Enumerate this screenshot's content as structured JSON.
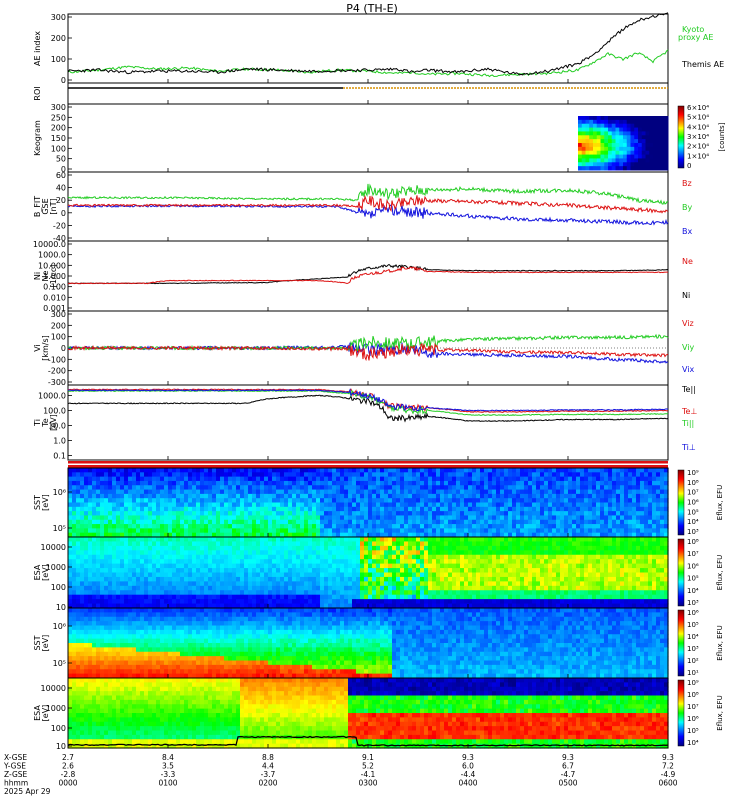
{
  "title": "P4 (TH-E)",
  "footer": {
    "rows": [
      "X-GSE",
      "Y-GSE",
      "Z-GSE",
      "hhmm",
      "2025 Apr 29"
    ],
    "columns": [
      [
        "2.7",
        "2.6",
        "-2.8",
        "0000"
      ],
      [
        "8.4",
        "3.5",
        "-3.3",
        "0100"
      ],
      [
        "8.8",
        "4.4",
        "-3.7",
        "0200"
      ],
      [
        "9.1",
        "5.2",
        "-4.1",
        "0300"
      ],
      [
        "9.3",
        "6.0",
        "-4.4",
        "0400"
      ],
      [
        "9.3",
        "6.7",
        "-4.7",
        "0500"
      ],
      [
        "9.3",
        "7.2",
        "-4.9",
        "0600"
      ]
    ]
  },
  "colors": {
    "green": "#22cc22",
    "black": "#000000",
    "red": "#dd1111",
    "blue": "#1111dd",
    "orange": "#d89000"
  },
  "chart_data": [
    {
      "id": "ae",
      "type": "line",
      "ylabel": "AE index",
      "ylim": [
        -20,
        300
      ],
      "yticks": [
        "300",
        "200",
        "100",
        "0"
      ],
      "legend": [
        "Kyoto",
        "proxy AE",
        "Themis AE"
      ],
      "series": [
        {
          "name": "Kyoto proxy AE",
          "x": [
            0,
            30,
            60,
            90,
            120,
            150,
            180,
            210,
            240,
            270,
            300,
            330,
            345,
            360,
            390,
            420,
            450,
            480,
            510,
            525,
            540,
            555,
            570,
            585,
            600
          ],
          "values": [
            30,
            40,
            55,
            45,
            50,
            35,
            45,
            40,
            30,
            40,
            35,
            25,
            30,
            20,
            25,
            15,
            20,
            25,
            40,
            75,
            115,
            90,
            120,
            80,
            130
          ]
        },
        {
          "name": "Themis AE",
          "x": [
            0,
            30,
            60,
            90,
            120,
            150,
            180,
            210,
            240,
            270,
            300,
            330,
            345,
            360,
            390,
            420,
            450,
            480,
            510,
            525,
            540,
            555,
            570,
            585,
            600
          ],
          "values": [
            35,
            40,
            30,
            35,
            35,
            30,
            45,
            40,
            35,
            38,
            40,
            45,
            30,
            40,
            30,
            45,
            20,
            35,
            70,
            110,
            170,
            230,
            270,
            290,
            300
          ]
        }
      ]
    },
    {
      "id": "roi",
      "type": "line",
      "ylabel": "ROI",
      "ylim": [
        0,
        1
      ],
      "segments": [
        [
          0,
          275,
          "black"
        ],
        [
          275,
          600,
          "orange"
        ]
      ]
    },
    {
      "id": "keogram",
      "type": "heatmap",
      "ylabel": "Keogram",
      "ylim": [
        0,
        300
      ],
      "yticks": [
        "300",
        "250",
        "200",
        "150",
        "100",
        "50",
        "0"
      ],
      "x_range": [
        510,
        600
      ],
      "colorbar": {
        "label": "[counts]",
        "ticks": [
          "6×10⁴",
          "5×10⁴",
          "4×10⁴",
          "3×10⁴",
          "2×10⁴",
          "1×10⁴",
          "0"
        ]
      }
    },
    {
      "id": "bfit",
      "type": "line",
      "ylabel": [
        "B_FIT",
        "GSE",
        "[nT]"
      ],
      "ylim": [
        -40,
        60
      ],
      "yticks": [
        "60",
        "40",
        "20",
        "0",
        "-20",
        "-40"
      ],
      "legend": [
        "Bz",
        "By",
        "Bx"
      ],
      "series": [
        {
          "name": "Bz",
          "x": [
            0,
            100,
            200,
            270,
            290,
            300,
            320,
            350,
            400,
            450,
            500,
            540,
            570,
            600
          ],
          "values": [
            12,
            12,
            12,
            12,
            10,
            20,
            10,
            20,
            18,
            15,
            12,
            8,
            5,
            2
          ]
        },
        {
          "name": "By",
          "x": [
            0,
            100,
            200,
            270,
            290,
            300,
            320,
            350,
            400,
            450,
            500,
            540,
            570,
            600
          ],
          "values": [
            24,
            24,
            22,
            22,
            20,
            38,
            30,
            36,
            38,
            34,
            36,
            30,
            20,
            15
          ]
        },
        {
          "name": "Bx",
          "x": [
            0,
            100,
            200,
            270,
            290,
            300,
            320,
            350,
            400,
            450,
            500,
            540,
            570,
            600
          ],
          "values": [
            10,
            11,
            10,
            10,
            0,
            -5,
            5,
            0,
            -5,
            -10,
            -12,
            -14,
            -16,
            -15
          ]
        }
      ]
    },
    {
      "id": "ni",
      "type": "line",
      "ylabel": [
        "Ni",
        "Ne",
        "[1/cc]"
      ],
      "yscale": "log",
      "ylim": [
        0.001,
        10000
      ],
      "yticks": [
        "10000.0",
        "1000.0",
        "10.000",
        "1.000",
        "0.100",
        "0.010",
        "0.001"
      ],
      "legend": [
        "Ne",
        "Ni"
      ],
      "series": [
        {
          "name": "Ne",
          "x": [
            0,
            80,
            100,
            200,
            250,
            280,
            300,
            320,
            340,
            360,
            400,
            450,
            500,
            550,
            600
          ],
          "values": [
            0.5,
            0.5,
            1,
            1,
            1,
            0.5,
            5,
            10,
            25,
            10,
            8,
            8,
            8,
            8,
            8
          ]
        },
        {
          "name": "Ni",
          "x": [
            0,
            80,
            100,
            200,
            250,
            280,
            300,
            320,
            340,
            360,
            400,
            450,
            500,
            550,
            600
          ],
          "values": [
            0.5,
            0.5,
            0.5,
            0.6,
            1.5,
            2.5,
            20,
            40,
            30,
            15,
            12,
            12,
            12,
            12,
            15
          ]
        }
      ]
    },
    {
      "id": "vi",
      "type": "line",
      "ylabel": [
        "Vi",
        "[km/s]"
      ],
      "ylim": [
        -320,
        320
      ],
      "yticks": [
        "300",
        "200",
        "100",
        "0",
        "-100",
        "-200",
        "-300"
      ],
      "legend": [
        "Viz",
        "Viy",
        "Vix"
      ],
      "series": [
        {
          "name": "Viz",
          "x": [
            0,
            100,
            200,
            280,
            300,
            330,
            360,
            400,
            450,
            500,
            550,
            600
          ],
          "values": [
            0,
            0,
            0,
            -10,
            -60,
            -20,
            -20,
            -20,
            -40,
            -40,
            -60,
            -70
          ]
        },
        {
          "name": "Viy",
          "x": [
            0,
            100,
            200,
            280,
            300,
            330,
            360,
            400,
            450,
            500,
            550,
            600
          ],
          "values": [
            0,
            0,
            0,
            0,
            60,
            40,
            60,
            80,
            90,
            100,
            100,
            110
          ]
        },
        {
          "name": "Vix",
          "x": [
            0,
            100,
            200,
            280,
            300,
            330,
            360,
            400,
            450,
            500,
            550,
            600
          ],
          "values": [
            0,
            0,
            0,
            10,
            -20,
            0,
            -50,
            -60,
            -70,
            -80,
            -110,
            -130
          ]
        }
      ]
    },
    {
      "id": "ti",
      "type": "line",
      "ylabel": [
        "Ti",
        "Te",
        "[eV]"
      ],
      "yscale": "log",
      "ylim": [
        0.05,
        5000
      ],
      "yticks": [
        "1000.0",
        "100.0",
        "10.0",
        "1.0",
        "0.1"
      ],
      "legend": [
        "Te||",
        "Te⊥",
        "Ti||",
        "Ti⊥"
      ],
      "series": [
        {
          "name": "Te||",
          "x": [
            0,
            80,
            180,
            200,
            250,
            270,
            290,
            300,
            320,
            340,
            360,
            400,
            450,
            500,
            550,
            600
          ],
          "values": [
            300,
            300,
            300,
            600,
            1000,
            800,
            500,
            400,
            30,
            30,
            40,
            20,
            20,
            25,
            25,
            30
          ]
        },
        {
          "name": "Te⊥",
          "x": [
            0,
            80,
            180,
            200,
            250,
            270,
            290,
            300,
            320,
            340,
            360,
            400,
            450,
            500,
            550,
            600
          ],
          "values": [
            2500,
            2500,
            2500,
            2500,
            2500,
            2000,
            1500,
            1000,
            200,
            150,
            150,
            80,
            80,
            90,
            90,
            100
          ]
        },
        {
          "name": "Ti||",
          "x": [
            0,
            80,
            180,
            200,
            250,
            270,
            290,
            300,
            320,
            340,
            360,
            400,
            450,
            500,
            550,
            600
          ],
          "values": [
            2000,
            2000,
            2000,
            2000,
            2000,
            1500,
            1200,
            800,
            150,
            100,
            100,
            50,
            50,
            55,
            55,
            60
          ]
        },
        {
          "name": "Ti⊥",
          "x": [
            0,
            80,
            180,
            200,
            250,
            270,
            290,
            300,
            320,
            340,
            360,
            400,
            450,
            500,
            550,
            600
          ],
          "values": [
            2200,
            2200,
            2200,
            2200,
            2200,
            1800,
            1400,
            900,
            200,
            150,
            150,
            100,
            100,
            110,
            110,
            120
          ]
        }
      ]
    },
    {
      "id": "sst_e",
      "type": "heatmap",
      "ylabel": [
        "SST",
        "[eV]"
      ],
      "yticks": [
        "10⁶",
        "10⁵"
      ],
      "colorbar": {
        "label": "Eflux, EFU",
        "ticks": [
          "10⁹",
          "10⁸",
          "10⁷",
          "10⁶",
          "10⁵",
          "10⁴",
          "10³"
        ]
      }
    },
    {
      "id": "esa_e",
      "type": "heatmap",
      "ylabel": [
        "ESA",
        "[eV]"
      ],
      "yticks": [
        "10000",
        "1000",
        "100",
        "10"
      ],
      "colorbar": {
        "label": "Eflux, EFU",
        "ticks": [
          "10⁸",
          "10⁷",
          "10⁶",
          "10⁵",
          "10⁴",
          "10³"
        ]
      }
    },
    {
      "id": "sst_i",
      "type": "heatmap",
      "ylabel": [
        "SST",
        "[eV]"
      ],
      "yticks": [
        "10⁶",
        "10⁵"
      ],
      "colorbar": {
        "label": "Eflux, EFU",
        "ticks": [
          "10⁶",
          "10⁵",
          "10⁴",
          "10³",
          "10²",
          "10¹"
        ]
      }
    },
    {
      "id": "esa_i",
      "type": "heatmap",
      "ylabel": [
        "ESA",
        "[eV]"
      ],
      "yticks": [
        "10000",
        "1000",
        "100",
        "10"
      ],
      "colorbar": {
        "label": "Eflux, EFU",
        "ticks": [
          "10⁹",
          "10⁸",
          "10⁷",
          "10⁶",
          "10⁵",
          "10⁴"
        ]
      }
    }
  ]
}
